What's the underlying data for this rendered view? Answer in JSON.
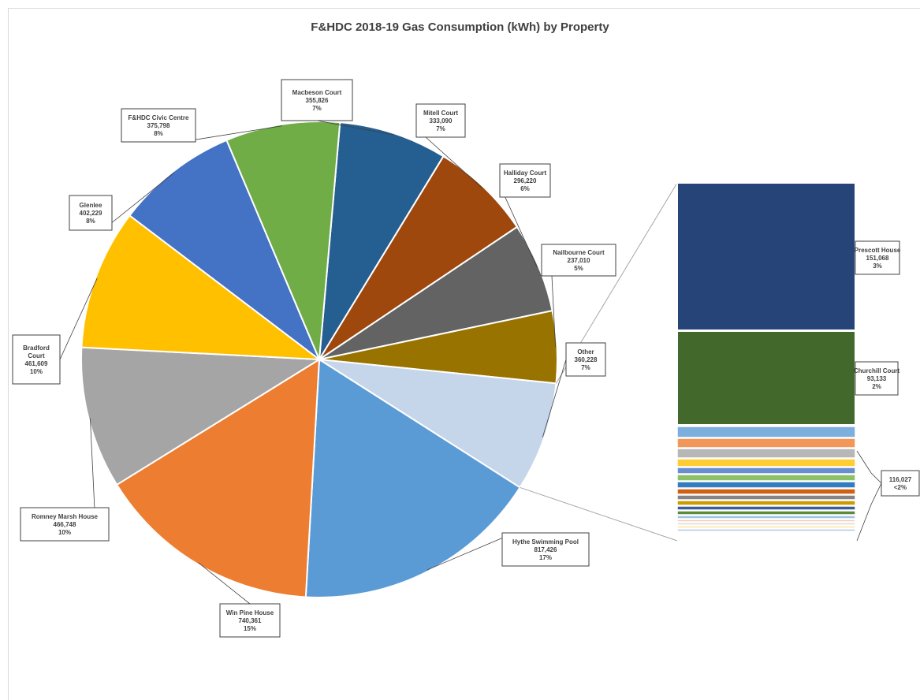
{
  "chart_data": {
    "type": "pie",
    "subtype": "pie-of-bar",
    "title": "F&HDC 2018-19 Gas Consumption (kWh) by Property",
    "pie": [
      {
        "name": "Macbeson Court",
        "value": "355,826",
        "pct": "7%",
        "color": "#255e91"
      },
      {
        "name": "Mitell Court",
        "value": "333,090",
        "pct": "7%",
        "color": "#9e480e"
      },
      {
        "name": "Halliday Court",
        "value": "296,220",
        "pct": "6%",
        "color": "#636363"
      },
      {
        "name": "Nailbourne Court",
        "value": "237,010",
        "pct": "5%",
        "color": "#997300"
      },
      {
        "name": "Other",
        "value": "360,228",
        "pct": "7%",
        "color": "#c5d5ea"
      },
      {
        "name": "Hythe Swimming Pool",
        "value": "817,426",
        "pct": "17%",
        "color": "#5b9bd5"
      },
      {
        "name": "Win Pine House",
        "value": "740,361",
        "pct": "15%",
        "color": "#ed7d31"
      },
      {
        "name": "Romney Marsh House",
        "value": "466,748",
        "pct": "10%",
        "color": "#a5a5a5"
      },
      {
        "name": "Bradford Court",
        "value": "461,609",
        "pct": "10%",
        "color": "#ffc000"
      },
      {
        "name": "Glenlee",
        "value": "402,229",
        "pct": "8%",
        "color": "#4472c4"
      },
      {
        "name": "F&HDC Civic Centre",
        "value": "375,798",
        "pct": "8%",
        "color": "#70ad47"
      }
    ],
    "bar": [
      {
        "name": "Prescott House",
        "value": "151,068",
        "pct": "3%",
        "color": "#264478"
      },
      {
        "name": "Churchill Court",
        "value": "93,133",
        "pct": "2%",
        "color": "#43682b"
      },
      {
        "name": "",
        "value": "116,027",
        "pct": "<2%",
        "color": "#5b9bd5"
      }
    ],
    "small_bar_colors": [
      "#7cafdd",
      "#f1975a",
      "#b7b7b7",
      "#ffcd33",
      "#698ed0",
      "#8cc168",
      "#327dc2",
      "#d26012",
      "#848484",
      "#cc9a00",
      "#3a5e9c",
      "#5a8a3a",
      "#9dc3e6",
      "#f8cbad",
      "#dbdbdb",
      "#ffe699",
      "#b4c7e7"
    ]
  }
}
